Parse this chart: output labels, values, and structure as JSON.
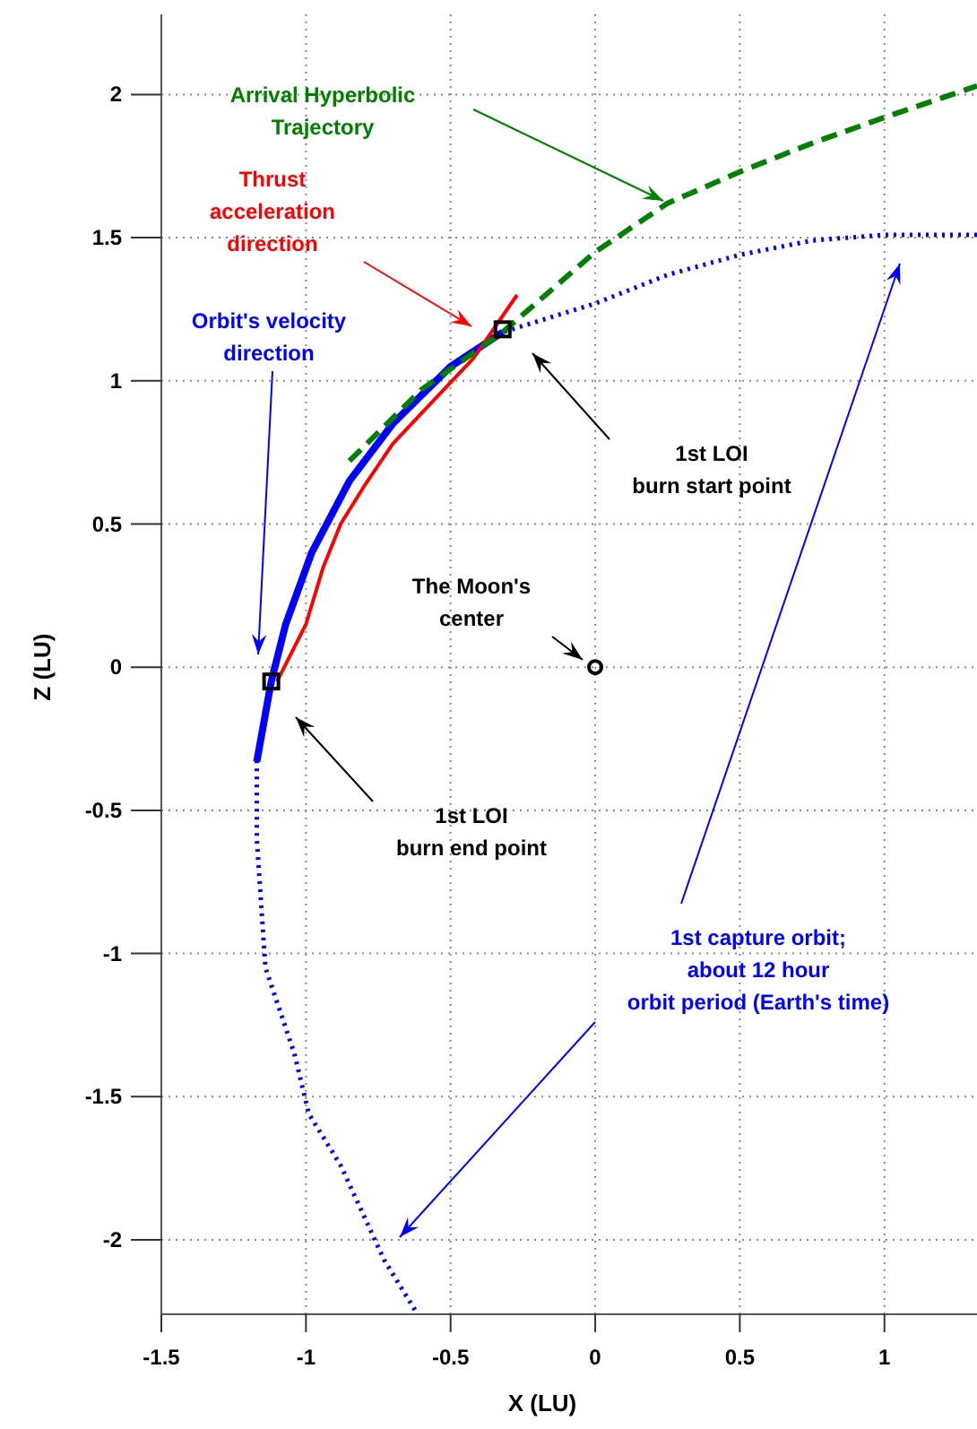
{
  "chart_data": {
    "type": "line",
    "xlabel": "X (LU)",
    "ylabel": "Z (LU)",
    "xlim": [
      -1.5,
      1.32
    ],
    "ylim": [
      -2.26,
      2.28
    ],
    "xticks": [
      -1.5,
      -1,
      -0.5,
      0,
      0.5,
      1
    ],
    "yticks": [
      -2,
      -1.5,
      -1,
      -0.5,
      0,
      0.5,
      1,
      1.5,
      2
    ],
    "grid": true,
    "series": [
      {
        "color": "#0000ff",
        "line_style": "dotted",
        "x": [
          1.32,
          1.0,
          0.75,
          0.5,
          0.25,
          0,
          -0.32,
          -0.5,
          -0.7,
          -0.85,
          -0.98,
          -1.07,
          -1.12,
          -1.17,
          -1.17,
          -1.14,
          -1.04,
          -0.99,
          -0.88,
          -0.73,
          -0.62
        ],
        "values": [
          1.51,
          1.51,
          1.49,
          1.44,
          1.37,
          1.27,
          1.17,
          1.05,
          0.85,
          0.65,
          0.4,
          0.15,
          -0.05,
          -0.33,
          -0.6,
          -1.05,
          -1.35,
          -1.56,
          -1.74,
          -2.07,
          -2.25
        ]
      },
      {
        "color": "#0000ff",
        "line_style": "solid",
        "x": [
          -1.17,
          -1.12,
          -1.07,
          -0.98,
          -0.85,
          -0.7,
          -0.5,
          -0.32
        ],
        "values": [
          -0.33,
          -0.05,
          0.15,
          0.4,
          0.65,
          0.85,
          1.05,
          1.17
        ]
      },
      {
        "color": "#ff0000",
        "line_style": "solid",
        "x": [
          -1.1,
          -1.0,
          -0.94,
          -0.88,
          -0.8,
          -0.7,
          -0.56,
          -0.42,
          -0.27
        ],
        "values": [
          -0.05,
          0.15,
          0.35,
          0.5,
          0.63,
          0.78,
          0.93,
          1.08,
          1.3
        ]
      },
      {
        "color": "#008000",
        "line_style": "dashed",
        "x": [
          -0.85,
          -0.6,
          -0.32,
          0,
          0.25,
          0.5,
          0.75,
          1.0,
          1.32
        ],
        "values": [
          0.72,
          0.97,
          1.17,
          1.45,
          1.62,
          1.73,
          1.83,
          1.92,
          2.03
        ]
      },
      {
        "type": "scatter",
        "color": "#000000",
        "marker": "square",
        "x": [
          -0.32,
          -1.12
        ],
        "values": [
          1.18,
          -0.05
        ]
      },
      {
        "type": "scatter",
        "color": "#000000",
        "marker": "circle",
        "x": [
          0
        ],
        "values": [
          0
        ]
      }
    ],
    "annotations": [
      "Arrival Hyperbolic\nTrajectory",
      "Thrust\nacceleration\ndirection",
      "Orbit's velocity\ndirection",
      "1st LOI\nburn start point",
      "The Moon's\ncenter",
      "1st LOI\nburn end point",
      "1st capture orbit;\nabout 12 hour\norbit period (Earth's time)"
    ]
  }
}
